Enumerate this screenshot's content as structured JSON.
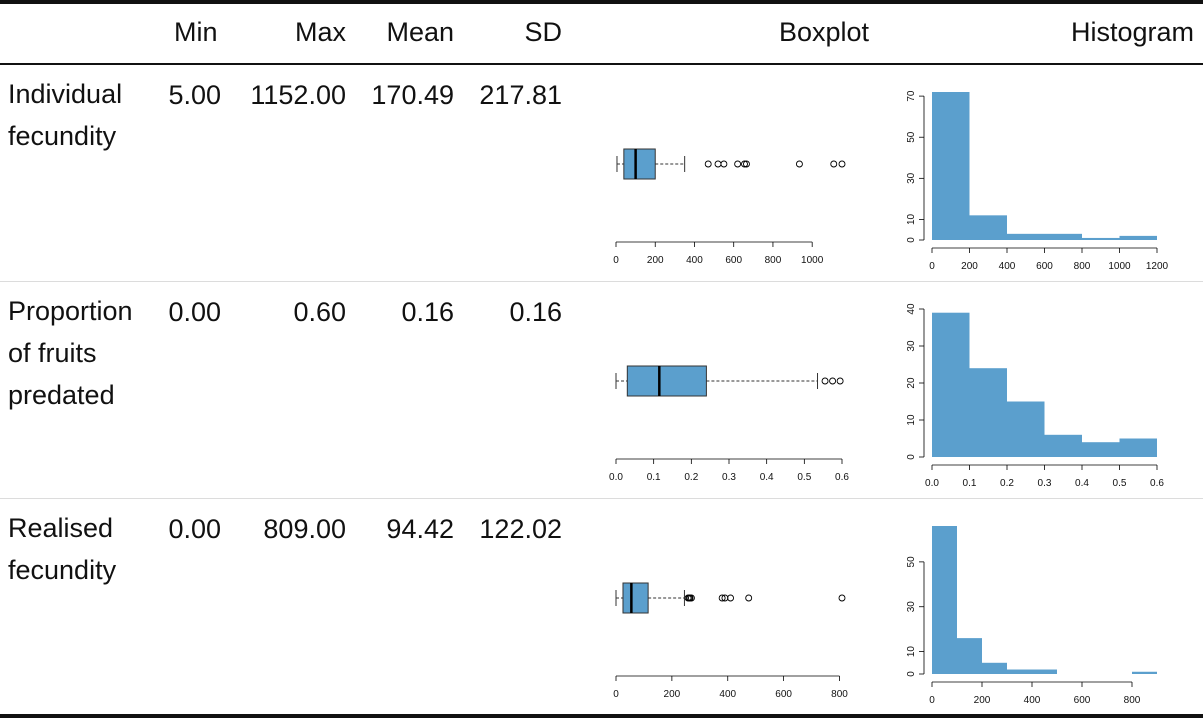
{
  "headers": {
    "min": "Min",
    "max": "Max",
    "mean": "Mean",
    "sd": "SD",
    "boxplot": "Boxplot",
    "histogram": "Histogram"
  },
  "colors": {
    "fill": "#5b9fcd",
    "stroke": "#333333"
  },
  "rows": [
    {
      "label": "Individual fecundity",
      "min": "5.00",
      "max": "1152.00",
      "mean": "170.49",
      "sd": "217.81"
    },
    {
      "label": "Proportion of fruits predated",
      "min": "0.00",
      "max": "0.60",
      "mean": "0.16",
      "sd": "0.16"
    },
    {
      "label": "Realised fecundity",
      "min": "0.00",
      "max": "809.00",
      "mean": "94.42",
      "sd": "122.02"
    }
  ],
  "chart_data": [
    {
      "type": "boxplot",
      "row": 0,
      "xlim": [
        0,
        1152
      ],
      "xticks": [
        "0",
        "200",
        "400",
        "600",
        "800",
        "1000"
      ],
      "xtick_values": [
        0,
        200,
        400,
        600,
        800,
        1000
      ],
      "stats": {
        "whisker_low": 5,
        "q1": 40,
        "median": 100,
        "q3": 200,
        "whisker_high": 350
      },
      "outliers": [
        470,
        520,
        550,
        620,
        655,
        665,
        935,
        1110,
        1152
      ]
    },
    {
      "type": "histogram",
      "row": 0,
      "xlim": [
        0,
        1200
      ],
      "ylim": [
        0,
        72
      ],
      "xticks": [
        "0",
        "200",
        "400",
        "600",
        "800",
        "1000",
        "1200"
      ],
      "xtick_values": [
        0,
        200,
        400,
        600,
        800,
        1000,
        1200
      ],
      "yticks": [
        "0",
        "10",
        "30",
        "50",
        "70"
      ],
      "ytick_values": [
        0,
        10,
        30,
        50,
        70
      ],
      "bins": [
        0,
        200,
        400,
        600,
        800,
        1000,
        1200
      ],
      "counts": [
        72,
        12,
        3,
        3,
        1,
        2
      ]
    },
    {
      "type": "boxplot",
      "row": 1,
      "xlim": [
        0,
        0.6
      ],
      "xticks": [
        "0.0",
        "0.1",
        "0.2",
        "0.3",
        "0.4",
        "0.5",
        "0.6"
      ],
      "xtick_values": [
        0,
        0.1,
        0.2,
        0.3,
        0.4,
        0.5,
        0.6
      ],
      "stats": {
        "whisker_low": 0,
        "q1": 0.03,
        "median": 0.115,
        "q3": 0.24,
        "whisker_high": 0.535
      },
      "outliers": [
        0.555,
        0.575,
        0.595
      ]
    },
    {
      "type": "histogram",
      "row": 1,
      "xlim": [
        0,
        0.6
      ],
      "ylim": [
        0,
        40
      ],
      "xticks": [
        "0.0",
        "0.1",
        "0.2",
        "0.3",
        "0.4",
        "0.5",
        "0.6"
      ],
      "xtick_values": [
        0,
        0.1,
        0.2,
        0.3,
        0.4,
        0.5,
        0.6
      ],
      "yticks": [
        "0",
        "10",
        "20",
        "30",
        "40"
      ],
      "ytick_values": [
        0,
        10,
        20,
        30,
        40
      ],
      "bins": [
        0,
        0.1,
        0.2,
        0.3,
        0.4,
        0.5,
        0.6
      ],
      "counts": [
        39,
        24,
        15,
        6,
        4,
        5
      ]
    },
    {
      "type": "boxplot",
      "row": 2,
      "xlim": [
        0,
        809
      ],
      "xticks": [
        "0",
        "200",
        "400",
        "600",
        "800"
      ],
      "xtick_values": [
        0,
        200,
        400,
        600,
        800
      ],
      "stats": {
        "whisker_low": 0,
        "q1": 25,
        "median": 55,
        "q3": 115,
        "whisker_high": 245
      },
      "outliers": [
        258,
        262,
        265,
        270,
        380,
        390,
        410,
        475,
        809
      ]
    },
    {
      "type": "histogram",
      "row": 2,
      "xlim": [
        0,
        900
      ],
      "ylim": [
        0,
        66
      ],
      "xticks": [
        "0",
        "200",
        "400",
        "600",
        "800"
      ],
      "xtick_values": [
        0,
        200,
        400,
        600,
        800
      ],
      "yticks": [
        "0",
        "10",
        "30",
        "50"
      ],
      "ytick_values": [
        0,
        10,
        30,
        50
      ],
      "bins": [
        0,
        100,
        200,
        300,
        400,
        500,
        600,
        700,
        800,
        900
      ],
      "counts": [
        66,
        16,
        5,
        2,
        2,
        0,
        0,
        0,
        1
      ]
    }
  ]
}
